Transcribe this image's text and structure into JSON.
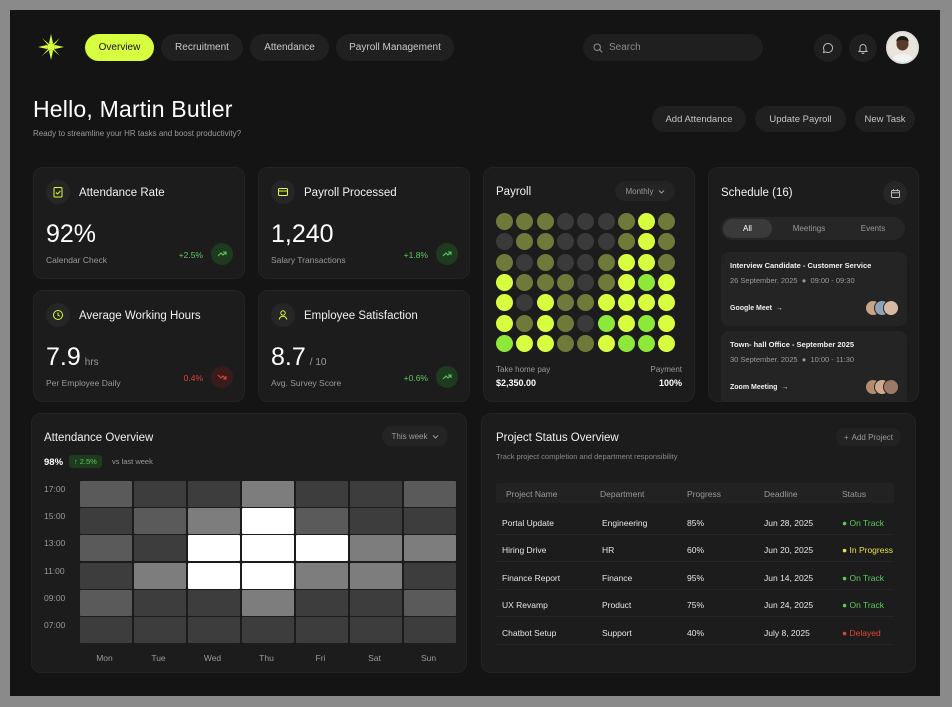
{
  "nav": {
    "tabs": [
      {
        "label": "Overview",
        "active": true
      },
      {
        "label": "Recruitment",
        "active": false
      },
      {
        "label": "Attendance",
        "active": false
      },
      {
        "label": "Payroll Management",
        "active": false
      }
    ],
    "search_placeholder": "Search",
    "icons": [
      "message-icon",
      "bell-icon"
    ],
    "accent": "#d7ff3f"
  },
  "header": {
    "greeting": "Hello, Martin Butler",
    "subtitle": "Ready to streamline your HR tasks and boost productivity?",
    "actions": [
      "Add Attendance",
      "Update Payroll",
      "New Task"
    ]
  },
  "kpis": [
    {
      "icon": "clipboard-check-icon",
      "title": "Attendance Rate",
      "value": "92%",
      "unit": "",
      "sub": "Calendar Check",
      "delta": "+2.5%",
      "trend": "up"
    },
    {
      "icon": "wallet-icon",
      "title": "Payroll Processed",
      "value": "1,240",
      "unit": "",
      "sub": "Salary Transactions",
      "delta": "+1.8%",
      "trend": "up"
    },
    {
      "icon": "clock-icon",
      "title": "Average Working Hours",
      "value": "7.9",
      "unit": "hrs",
      "sub": "Per Employee Daily",
      "delta": "0.4%",
      "trend": "down"
    },
    {
      "icon": "user-icon",
      "title": "Employee Satisfaction",
      "value": "8.7",
      "unit": "/ 10",
      "sub": "Avg. Survey Score",
      "delta": "+0.6%",
      "trend": "up"
    }
  ],
  "payroll": {
    "title": "Payroll",
    "period": "Monthly",
    "take_home_label": "Take home pay",
    "take_home_value": "$2,350.00",
    "payment_label": "Payment",
    "payment_value": "100%",
    "palette": [
      "#3a3a3a",
      "#6f7a3a",
      "#d7ff3f",
      "#8ee83a"
    ],
    "grid": [
      [
        1,
        1,
        1,
        0,
        0,
        0,
        1,
        2,
        1
      ],
      [
        0,
        1,
        1,
        0,
        0,
        0,
        1,
        2,
        1
      ],
      [
        1,
        0,
        1,
        0,
        0,
        1,
        2,
        2,
        1
      ],
      [
        2,
        1,
        1,
        1,
        0,
        1,
        2,
        3,
        2
      ],
      [
        2,
        0,
        2,
        1,
        1,
        2,
        2,
        2,
        2
      ],
      [
        2,
        1,
        2,
        1,
        0,
        3,
        2,
        3,
        2
      ],
      [
        3,
        2,
        2,
        1,
        1,
        2,
        3,
        3,
        2
      ]
    ]
  },
  "schedule": {
    "title": "Schedule (16)",
    "tabs": [
      {
        "label": "All",
        "active": true
      },
      {
        "label": "Meetings",
        "active": false
      },
      {
        "label": "Events",
        "active": false
      }
    ],
    "events": [
      {
        "title": "Interview Candidate - Customer Service",
        "date": "26 September. 2025",
        "time": "09:00 - 09:30",
        "link": "Google Meet"
      },
      {
        "title": "Town- hall Office - September 2025",
        "date": "30 September. 2025",
        "time": "10:00 - 11:30",
        "link": "Zoom Meeting"
      }
    ]
  },
  "attendance": {
    "title": "Attendance Overview",
    "period": "This week",
    "percent": "98%",
    "change": "2.5%",
    "vs": "vs last week",
    "y_labels": [
      "17:00",
      "15:00",
      "13:00",
      "11:00",
      "09:00",
      "07:00"
    ],
    "x_labels": [
      "Mon",
      "Tue",
      "Wed",
      "Thu",
      "Fri",
      "Sat",
      "Sun"
    ],
    "palette": [
      "#2d2d2d",
      "#3d3d3d",
      "#5a5a5a",
      "#7d7d7d",
      "#ffffff"
    ],
    "grid": [
      [
        2,
        1,
        1,
        3,
        1,
        1,
        2
      ],
      [
        1,
        2,
        3,
        4,
        2,
        1,
        1
      ],
      [
        2,
        1,
        4,
        4,
        4,
        3,
        3
      ],
      [
        1,
        3,
        4,
        4,
        3,
        3,
        1
      ],
      [
        2,
        1,
        1,
        3,
        1,
        1,
        2
      ],
      [
        1,
        1,
        1,
        1,
        1,
        1,
        1
      ]
    ]
  },
  "projects": {
    "title": "Project Status Overview",
    "subtitle": "Track project completion and department responsibility",
    "add_label": "Add Project",
    "columns": [
      "Project Name",
      "Department",
      "Progress",
      "Deadline",
      "Status"
    ],
    "rows": [
      {
        "name": "Portal Update",
        "dept": "Engineering",
        "progress": "85%",
        "deadline": "Jun 28, 2025",
        "status": "On Track",
        "color": "#5ec85e"
      },
      {
        "name": "Hiring Drive",
        "dept": "HR",
        "progress": "60%",
        "deadline": "Jun 20, 2025",
        "status": "In Progress",
        "color": "#e6e04a"
      },
      {
        "name": "Finance Report",
        "dept": "Finance",
        "progress": "95%",
        "deadline": "Jun 14, 2025",
        "status": "On Track",
        "color": "#5ec85e"
      },
      {
        "name": "UX Revamp",
        "dept": "Product",
        "progress": "75%",
        "deadline": "Jun 24, 2025",
        "status": "On Track",
        "color": "#5ec85e"
      },
      {
        "name": "Chatbot Setup",
        "dept": "Support",
        "progress": "40%",
        "deadline": "July 8, 2025",
        "status": "Delayed",
        "color": "#e0443a"
      }
    ]
  }
}
